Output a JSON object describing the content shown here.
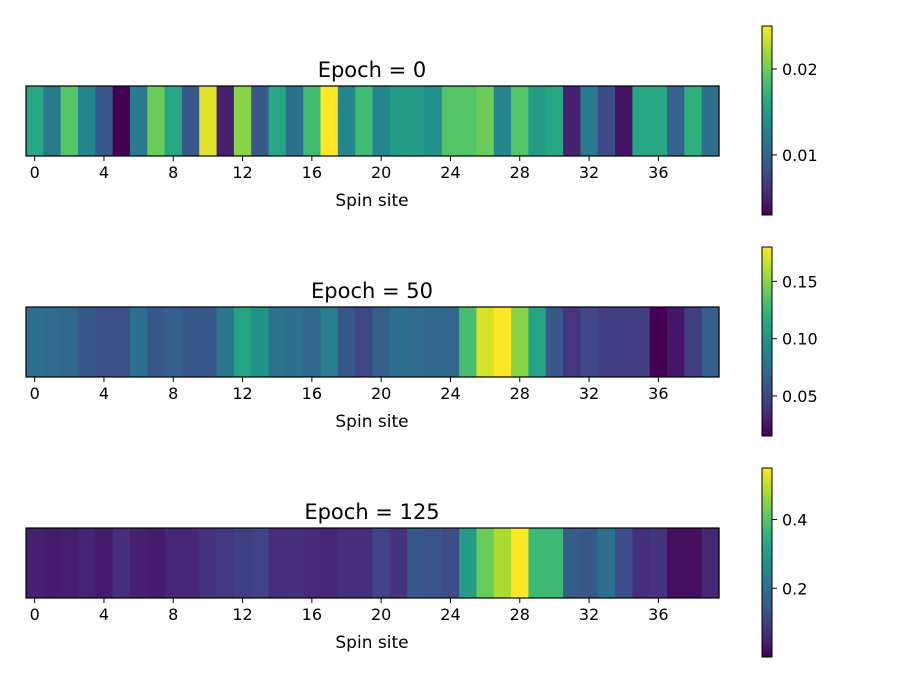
{
  "chart_data": [
    {
      "type": "heatmap",
      "title": "Epoch = 0",
      "xlabel": "Spin site",
      "xticks": [
        0,
        4,
        8,
        12,
        16,
        20,
        24,
        28,
        32,
        36
      ],
      "colorbar_range": [
        0.003,
        0.025
      ],
      "colorbar_ticks": [
        0.01,
        0.02
      ],
      "colorbar_tick_labels": [
        "0.01",
        "0.02"
      ],
      "values": [
        0.016,
        0.012,
        0.019,
        0.013,
        0.009,
        0.003,
        0.012,
        0.02,
        0.016,
        0.009,
        0.024,
        0.005,
        0.021,
        0.009,
        0.016,
        0.011,
        0.018,
        0.025,
        0.013,
        0.018,
        0.013,
        0.015,
        0.015,
        0.014,
        0.019,
        0.019,
        0.02,
        0.013,
        0.019,
        0.015,
        0.016,
        0.005,
        0.012,
        0.008,
        0.004,
        0.016,
        0.016,
        0.01,
        0.017,
        0.011
      ]
    },
    {
      "type": "heatmap",
      "title": "Epoch = 50",
      "xlabel": "Spin site",
      "xticks": [
        0,
        4,
        8,
        12,
        16,
        20,
        24,
        28,
        32,
        36
      ],
      "colorbar_range": [
        0.015,
        0.18
      ],
      "colorbar_ticks": [
        0.05,
        0.1,
        0.15
      ],
      "colorbar_tick_labels": [
        "0.05",
        "0.10",
        "0.15"
      ],
      "values": [
        0.075,
        0.072,
        0.07,
        0.06,
        0.055,
        0.055,
        0.075,
        0.06,
        0.065,
        0.06,
        0.06,
        0.08,
        0.11,
        0.1,
        0.078,
        0.075,
        0.07,
        0.085,
        0.06,
        0.05,
        0.065,
        0.075,
        0.073,
        0.07,
        0.07,
        0.13,
        0.17,
        0.18,
        0.15,
        0.11,
        0.06,
        0.04,
        0.05,
        0.045,
        0.045,
        0.045,
        0.015,
        0.025,
        0.045,
        0.065
      ]
    },
    {
      "type": "heatmap",
      "title": "Epoch = 125",
      "xlabel": "Spin site",
      "xticks": [
        0,
        4,
        8,
        12,
        16,
        20,
        24,
        28,
        32,
        36
      ],
      "colorbar_range": [
        0.0,
        0.55
      ],
      "colorbar_ticks": [
        0.2,
        0.4
      ],
      "colorbar_tick_labels": [
        "0.2",
        "0.4"
      ],
      "values": [
        0.05,
        0.04,
        0.045,
        0.055,
        0.04,
        0.07,
        0.05,
        0.04,
        0.06,
        0.06,
        0.08,
        0.09,
        0.1,
        0.11,
        0.07,
        0.075,
        0.065,
        0.06,
        0.07,
        0.07,
        0.11,
        0.08,
        0.15,
        0.14,
        0.13,
        0.3,
        0.42,
        0.48,
        0.55,
        0.37,
        0.37,
        0.16,
        0.15,
        0.2,
        0.13,
        0.07,
        0.08,
        0.02,
        0.02,
        0.06
      ]
    }
  ]
}
